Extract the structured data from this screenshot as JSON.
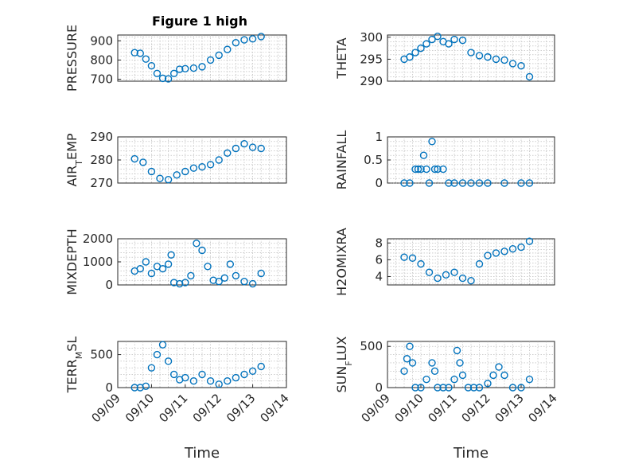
{
  "figure": {
    "title": "Figure 1 high"
  },
  "chart_data": [
    {
      "type": "scatter",
      "ylabel": "PRESSURE",
      "title": "Figure 1 high",
      "xlim": [
        "09/09",
        "09/14"
      ],
      "ylim": [
        690,
        930
      ],
      "yticks": [
        700,
        800,
        900
      ],
      "ytick_labels": [
        "700",
        "800",
        "900"
      ],
      "xticks": [],
      "grid": true,
      "x": [
        "09/09 12:00",
        "09/09 16:00",
        "09/09 20:00",
        "09/10 00:00",
        "09/10 04:00",
        "09/10 08:00",
        "09/10 12:00",
        "09/10 16:00",
        "09/10 20:00",
        "09/11 00:00",
        "09/11 06:00",
        "09/11 12:00",
        "09/11 18:00",
        "09/12 00:00",
        "09/12 06:00",
        "09/12 12:00",
        "09/12 18:00",
        "09/13 00:00",
        "09/13 06:00"
      ],
      "y": [
        838,
        835,
        805,
        770,
        730,
        705,
        702,
        730,
        752,
        755,
        758,
        765,
        800,
        825,
        855,
        890,
        905,
        910,
        922
      ]
    },
    {
      "type": "scatter",
      "ylabel": "THETA",
      "xlim": [
        "09/09",
        "09/14"
      ],
      "ylim": [
        290,
        300.5
      ],
      "yticks": [
        290,
        295,
        300
      ],
      "ytick_labels": [
        "290",
        "295",
        "300"
      ],
      "xticks": [],
      "grid": true,
      "x": [
        "09/09 12:00",
        "09/09 16:00",
        "09/09 20:00",
        "09/10 00:00",
        "09/10 04:00",
        "09/10 08:00",
        "09/10 12:00",
        "09/10 16:00",
        "09/10 20:00",
        "09/11 00:00",
        "09/11 06:00",
        "09/11 12:00",
        "09/11 18:00",
        "09/12 00:00",
        "09/12 06:00",
        "09/12 12:00",
        "09/12 18:00",
        "09/13 00:00",
        "09/13 06:00"
      ],
      "y": [
        295,
        295.5,
        296.5,
        297.5,
        298.5,
        299.5,
        300.2,
        299,
        298.5,
        299.5,
        299.3,
        296.5,
        295.8,
        295.5,
        295,
        294.8,
        294,
        293.5,
        291
      ]
    },
    {
      "type": "scatter",
      "ylabel": "AIR_TEMP",
      "xlim": [
        "09/09",
        "09/14"
      ],
      "ylim": [
        270,
        290
      ],
      "yticks": [
        270,
        280,
        290
      ],
      "ytick_labels": [
        "270",
        "280",
        "290"
      ],
      "xticks": [],
      "grid": true,
      "x": [
        "09/09 12:00",
        "09/09 18:00",
        "09/10 00:00",
        "09/10 06:00",
        "09/10 12:00",
        "09/10 18:00",
        "09/11 00:00",
        "09/11 06:00",
        "09/11 12:00",
        "09/11 18:00",
        "09/12 00:00",
        "09/12 06:00",
        "09/12 12:00",
        "09/12 18:00",
        "09/13 00:00",
        "09/13 06:00"
      ],
      "y": [
        280.5,
        279,
        275,
        272,
        271.5,
        273.5,
        275,
        276.5,
        277,
        278,
        280,
        283,
        285,
        287,
        285.5,
        285
      ]
    },
    {
      "type": "scatter",
      "ylabel": "RAINFALL",
      "xlim": [
        "09/09",
        "09/14"
      ],
      "ylim": [
        0,
        1
      ],
      "yticks": [
        0,
        0.5,
        1
      ],
      "ytick_labels": [
        "0",
        "0.5",
        "1"
      ],
      "xticks": [],
      "grid": true,
      "x": [
        "09/09 12:00",
        "09/09 16:00",
        "09/09 20:00",
        "09/09 22:00",
        "09/10 00:00",
        "09/10 02:00",
        "09/10 04:00",
        "09/10 06:00",
        "09/10 08:00",
        "09/10 10:00",
        "09/10 12:00",
        "09/10 16:00",
        "09/10 20:00",
        "09/11 00:00",
        "09/11 06:00",
        "09/11 12:00",
        "09/11 18:00",
        "09/12 00:00",
        "09/12 12:00",
        "09/13 00:00",
        "09/13 06:00"
      ],
      "y": [
        0,
        0,
        0.3,
        0.3,
        0.3,
        0.6,
        0.3,
        0,
        0.9,
        0.3,
        0.3,
        0.3,
        0,
        0,
        0,
        0,
        0,
        0,
        0,
        0,
        0
      ]
    },
    {
      "type": "scatter",
      "ylabel": "MIXDEPTH",
      "xlim": [
        "09/09",
        "09/14"
      ],
      "ylim": [
        0,
        2000
      ],
      "yticks": [
        0,
        1000,
        2000
      ],
      "ytick_labels": [
        "0",
        "1000",
        "2000"
      ],
      "xticks": [],
      "grid": true,
      "x": [
        "09/09 12:00",
        "09/09 16:00",
        "09/09 20:00",
        "09/10 00:00",
        "09/10 04:00",
        "09/10 08:00",
        "09/10 12:00",
        "09/10 14:00",
        "09/10 16:00",
        "09/10 20:00",
        "09/11 00:00",
        "09/11 04:00",
        "09/11 08:00",
        "09/11 12:00",
        "09/11 16:00",
        "09/11 20:00",
        "09/12 00:00",
        "09/12 04:00",
        "09/12 08:00",
        "09/12 12:00",
        "09/12 18:00",
        "09/13 00:00",
        "09/13 06:00"
      ],
      "y": [
        600,
        700,
        1000,
        500,
        800,
        700,
        900,
        1300,
        100,
        50,
        100,
        400,
        1800,
        1500,
        800,
        200,
        150,
        300,
        900,
        400,
        150,
        50,
        500
      ]
    },
    {
      "type": "scatter",
      "ylabel": "H2OMIXRA",
      "xlim": [
        "09/09",
        "09/14"
      ],
      "ylim": [
        3,
        8.5
      ],
      "yticks": [
        4,
        6,
        8
      ],
      "ytick_labels": [
        "4",
        "6",
        "8"
      ],
      "xticks": [],
      "grid": true,
      "x": [
        "09/09 12:00",
        "09/09 18:00",
        "09/10 00:00",
        "09/10 06:00",
        "09/10 12:00",
        "09/10 18:00",
        "09/11 00:00",
        "09/11 06:00",
        "09/11 12:00",
        "09/11 18:00",
        "09/12 00:00",
        "09/12 06:00",
        "09/12 12:00",
        "09/12 18:00",
        "09/13 00:00",
        "09/13 06:00"
      ],
      "y": [
        6.3,
        6.2,
        5.5,
        4.5,
        3.8,
        4.2,
        4.5,
        3.8,
        3.5,
        5.5,
        6.5,
        6.8,
        7,
        7.3,
        7.5,
        8.2
      ]
    },
    {
      "type": "scatter",
      "ylabel": "TERR_MSL",
      "xlim": [
        "09/09",
        "09/14"
      ],
      "ylim": [
        0,
        700
      ],
      "yticks": [
        0,
        500
      ],
      "ytick_labels": [
        "0",
        "500"
      ],
      "xticks": [
        "09/09",
        "09/10",
        "09/11",
        "09/12",
        "09/13",
        "09/14"
      ],
      "xtick_labels": [
        "09/09",
        "09/10",
        "09/11",
        "09/12",
        "09/13",
        "09/14"
      ],
      "xlabel": "Time",
      "grid": true,
      "x": [
        "09/09 12:00",
        "09/09 16:00",
        "09/09 20:00",
        "09/10 00:00",
        "09/10 04:00",
        "09/10 08:00",
        "09/10 12:00",
        "09/10 16:00",
        "09/10 20:00",
        "09/11 00:00",
        "09/11 06:00",
        "09/11 12:00",
        "09/11 18:00",
        "09/12 00:00",
        "09/12 06:00",
        "09/12 12:00",
        "09/12 18:00",
        "09/13 00:00",
        "09/13 06:00"
      ],
      "y": [
        0,
        0,
        20,
        300,
        500,
        650,
        400,
        200,
        120,
        150,
        100,
        200,
        100,
        50,
        100,
        150,
        200,
        250,
        320
      ]
    },
    {
      "type": "scatter",
      "ylabel": "SUN_FLUX",
      "xlim": [
        "09/09",
        "09/14"
      ],
      "ylim": [
        0,
        560
      ],
      "yticks": [
        0,
        500
      ],
      "ytick_labels": [
        "0",
        "500"
      ],
      "xticks": [
        "09/09",
        "09/10",
        "09/11",
        "09/12",
        "09/13",
        "09/14"
      ],
      "xtick_labels": [
        "09/09",
        "09/10",
        "09/11",
        "09/12",
        "09/13",
        "09/14"
      ],
      "xlabel": "Time",
      "grid": true,
      "x": [
        "09/09 12:00",
        "09/09 14:00",
        "09/09 16:00",
        "09/09 18:00",
        "09/09 20:00",
        "09/10 00:00",
        "09/10 04:00",
        "09/10 08:00",
        "09/10 10:00",
        "09/10 12:00",
        "09/10 16:00",
        "09/10 20:00",
        "09/11 00:00",
        "09/11 02:00",
        "09/11 04:00",
        "09/11 06:00",
        "09/11 10:00",
        "09/11 14:00",
        "09/11 18:00",
        "09/12 00:00",
        "09/12 04:00",
        "09/12 08:00",
        "09/12 12:00",
        "09/12 18:00",
        "09/13 00:00",
        "09/13 06:00"
      ],
      "y": [
        200,
        350,
        500,
        300,
        0,
        0,
        100,
        300,
        200,
        0,
        0,
        0,
        100,
        450,
        300,
        150,
        0,
        0,
        0,
        50,
        150,
        250,
        150,
        0,
        0,
        100
      ]
    }
  ]
}
